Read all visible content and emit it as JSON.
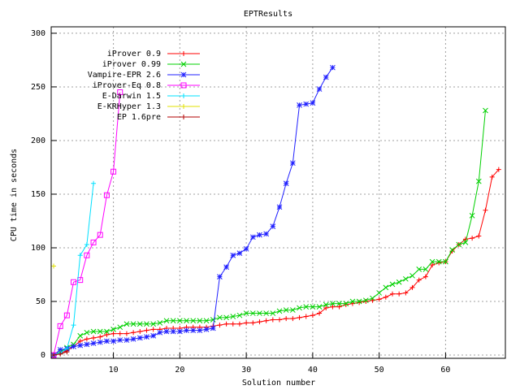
{
  "chart_data": {
    "type": "line",
    "title": "EPTResults",
    "x_label": "Solution number",
    "y_label": "CPU time in seconds",
    "x": [
      1,
      2,
      3,
      4,
      5,
      6,
      7,
      8,
      9,
      10,
      11,
      12,
      13,
      14,
      15,
      16,
      17,
      18,
      19,
      20,
      21,
      22,
      23,
      24,
      25,
      26,
      27,
      28,
      29,
      30,
      31,
      32,
      33,
      34,
      35,
      36,
      37,
      38,
      39,
      40,
      41,
      42,
      43,
      44,
      45,
      46,
      47,
      48,
      49,
      50,
      51,
      52,
      53,
      54,
      55,
      56,
      57,
      58,
      59,
      60,
      61,
      62,
      63,
      64,
      65,
      66,
      67,
      68
    ],
    "xlim": [
      1,
      69
    ],
    "xticks": [
      10,
      20,
      30,
      40,
      50,
      60
    ],
    "ylim": [
      -3,
      306
    ],
    "yticks": [
      0,
      50,
      100,
      150,
      200,
      250,
      300
    ],
    "grid": true,
    "legend": "top-left",
    "series": [
      {
        "name": "iProver 0.9",
        "color": "#ff0000",
        "marker": "plus",
        "values": [
          0,
          2,
          4,
          8,
          13,
          15,
          16,
          17,
          19,
          20,
          20,
          20,
          21,
          22,
          23,
          24,
          24,
          25,
          25,
          25,
          26,
          26,
          26,
          26,
          27,
          28,
          29,
          29,
          29,
          30,
          30,
          31,
          32,
          33,
          33,
          34,
          34,
          35,
          36,
          37,
          39,
          44,
          45,
          45,
          47,
          48,
          49,
          50,
          51,
          52,
          54,
          57,
          57,
          58,
          63,
          70,
          73,
          84,
          86,
          87,
          97,
          103,
          108,
          109,
          111,
          135,
          166,
          173
        ]
      },
      {
        "name": "iProver 0.99",
        "color": "#00d000",
        "marker": "cross",
        "values": [
          0,
          3,
          7,
          10,
          18,
          21,
          22,
          22,
          22,
          24,
          26,
          29,
          29,
          29,
          29,
          29,
          30,
          32,
          32,
          32,
          32,
          32,
          32,
          32,
          33,
          35,
          35,
          36,
          37,
          39,
          39,
          39,
          39,
          39,
          41,
          42,
          42,
          44,
          45,
          45,
          45,
          47,
          48,
          48,
          48,
          50,
          50,
          51,
          53,
          58,
          63,
          66,
          68,
          71,
          74,
          80,
          80,
          87,
          87,
          87,
          98,
          103,
          105,
          130,
          162,
          228,
          null,
          null
        ]
      },
      {
        "name": "Vampire-EPR 2.6",
        "color": "#2020ff",
        "marker": "star",
        "values": [
          0,
          5,
          6,
          8,
          9,
          10,
          11,
          12,
          13,
          13,
          14,
          14,
          15,
          16,
          17,
          18,
          21,
          22,
          22,
          22,
          23,
          23,
          23,
          24,
          25,
          73,
          82,
          93,
          95,
          99,
          110,
          112,
          113,
          120,
          138,
          160,
          179,
          233,
          234,
          235,
          248,
          259,
          268,
          null,
          null,
          null,
          null,
          null,
          null,
          null,
          null,
          null,
          null,
          null,
          null,
          null,
          null,
          null,
          null,
          null,
          null,
          null,
          null,
          null,
          null,
          null,
          null,
          null
        ]
      },
      {
        "name": "iProver-Eq 0.8",
        "color": "#ff00ff",
        "marker": "square",
        "values": [
          0,
          27,
          37,
          68,
          70,
          93,
          105,
          112,
          149,
          171,
          245,
          null,
          null,
          null,
          null,
          null,
          null,
          null,
          null,
          null,
          null,
          null,
          null,
          null,
          null,
          null,
          null,
          null,
          null,
          null,
          null,
          null,
          null,
          null,
          null,
          null,
          null,
          null,
          null,
          null,
          null,
          null,
          null,
          null,
          null,
          null,
          null,
          null,
          null,
          null,
          null,
          null,
          null,
          null,
          null,
          null,
          null,
          null,
          null,
          null,
          null,
          null,
          null,
          null,
          null,
          null,
          null,
          null
        ]
      },
      {
        "name": "E-Darwin 1.5",
        "color": "#00e0ff",
        "marker": "plus",
        "values": [
          0,
          2,
          6,
          28,
          93,
          103,
          160,
          null,
          null,
          null,
          null,
          null,
          null,
          null,
          null,
          null,
          null,
          null,
          null,
          null,
          null,
          null,
          null,
          null,
          null,
          null,
          null,
          null,
          null,
          null,
          null,
          null,
          null,
          null,
          null,
          null,
          null,
          null,
          null,
          null,
          null,
          null,
          null,
          null,
          null,
          null,
          null,
          null,
          null,
          null,
          null,
          null,
          null,
          null,
          null,
          null,
          null,
          null,
          null,
          null,
          null,
          null,
          null,
          null,
          null,
          null,
          null,
          null
        ]
      },
      {
        "name": "E-KRHyper 1.3",
        "color": "#e0e000",
        "marker": "plus",
        "values": [
          83,
          null,
          null,
          null,
          null,
          null,
          null,
          null,
          null,
          null,
          null,
          null,
          null,
          null,
          null,
          null,
          null,
          null,
          null,
          null,
          null,
          null,
          null,
          null,
          null,
          null,
          null,
          null,
          null,
          null,
          null,
          null,
          null,
          null,
          null,
          null,
          null,
          null,
          null,
          null,
          null,
          null,
          null,
          null,
          null,
          null,
          null,
          null,
          null,
          null,
          null,
          null,
          null,
          null,
          null,
          null,
          null,
          null,
          null,
          null,
          null,
          null,
          null,
          null,
          null,
          null,
          null,
          null
        ]
      },
      {
        "name": "EP 1.6pre",
        "color": "#b00000",
        "marker": "plus",
        "values": [
          0,
          1,
          3,
          null,
          null,
          null,
          null,
          null,
          null,
          null,
          null,
          null,
          null,
          null,
          null,
          null,
          null,
          null,
          null,
          null,
          null,
          null,
          null,
          null,
          null,
          null,
          null,
          null,
          null,
          null,
          null,
          null,
          null,
          null,
          null,
          null,
          null,
          null,
          null,
          null,
          null,
          null,
          null,
          null,
          null,
          null,
          null,
          null,
          null,
          null,
          null,
          null,
          null,
          null,
          null,
          null,
          null,
          null,
          null,
          null,
          null,
          null,
          null,
          null,
          null,
          null,
          null,
          null
        ]
      }
    ]
  }
}
